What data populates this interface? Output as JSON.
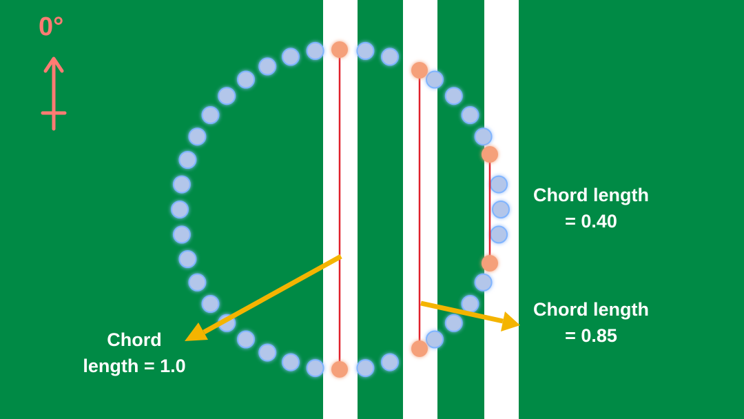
{
  "colors": {
    "field": "#008a45",
    "stripe": "#ffffff",
    "dot": "#b3c6ea",
    "dot_glow": "#7fb4ff",
    "endpoint": "#f5a07a",
    "chord_line": "#e0202a",
    "pointer_arrow": "#f4b400",
    "orientation": "#ff7b73",
    "label_text": "#ffffff"
  },
  "orientation": {
    "label": "0°",
    "icon": "up-arrow-icon"
  },
  "circle": {
    "dot_count": 40
  },
  "chords": [
    {
      "id": "chord-1",
      "label_line1": "Chord",
      "label_line2": "length = 1.0",
      "length": 1.0
    },
    {
      "id": "chord-2",
      "label_line1": "Chord length",
      "label_line2": "= 0.85",
      "length": 0.85
    },
    {
      "id": "chord-3",
      "label_line1": "Chord length",
      "label_line2": "= 0.40",
      "length": 0.4
    }
  ]
}
